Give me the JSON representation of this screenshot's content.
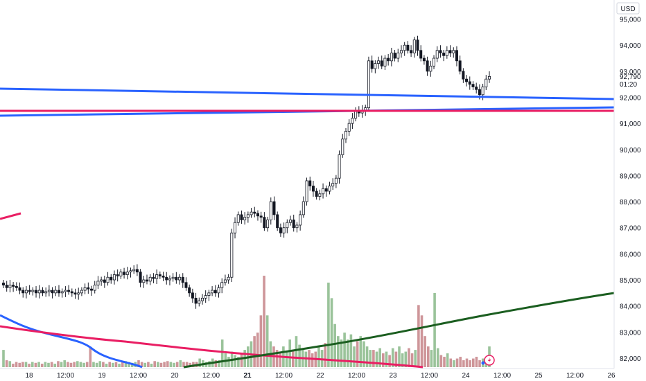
{
  "header": {
    "currency": "USD"
  },
  "price_axis": {
    "ticks": [
      "95,000",
      "94,000",
      "93,000",
      "92,000",
      "91,000",
      "90,000",
      "89,000",
      "88,000",
      "87,000",
      "86,000",
      "85,000",
      "84,000",
      "83,000",
      "82,000"
    ],
    "last_price": "92,790",
    "countdown": "01:20"
  },
  "time_axis": {
    "ticks": [
      "18",
      "12:00",
      "19",
      "12:00",
      "20",
      "12:00",
      "21",
      "12:00",
      "22",
      "12:00",
      "23",
      "12:00",
      "24",
      "12:00",
      "25",
      "12:00",
      "26"
    ]
  },
  "colors": {
    "background": "#ffffff",
    "up": "#26a69a",
    "down": "#ef5350",
    "candle": "#131722",
    "vol_up": "#8fbc8f",
    "vol_down": "#c98a8e",
    "trendline_blue": "#2962ff",
    "trendline_red": "#e91e63",
    "ma_green": "#1b5e20"
  },
  "chart_data": {
    "type": "candlestick",
    "y_unit": "USD",
    "ylim": [
      81600,
      95600
    ],
    "x_start": "18 Nov 06:00",
    "candle_interval_hours": 1,
    "candles_close": [
      84800,
      84700,
      84800,
      84750,
      84700,
      84600,
      84500,
      84600,
      84550,
      84600,
      84500,
      84600,
      84500,
      84550,
      84600,
      84500,
      84600,
      84500,
      84550,
      84600,
      84550,
      84500,
      84450,
      84500,
      84600,
      84700,
      84650,
      84600,
      84800,
      84950,
      85000,
      84900,
      85100,
      85000,
      85200,
      85150,
      85300,
      85200,
      85300,
      85350,
      85400,
      85300,
      84900,
      85000,
      84950,
      85100,
      85050,
      85200,
      85150,
      85100,
      85000,
      85050,
      85100,
      85000,
      85100,
      84900,
      84700,
      84500,
      84300,
      84100,
      84200,
      84300,
      84400,
      84500,
      84600,
      84500,
      84700,
      84900,
      85000,
      85100,
      86800,
      87200,
      87500,
      87300,
      87400,
      87500,
      87600,
      87550,
      87450,
      87400,
      87000,
      87300,
      88000,
      87500,
      87000,
      86800,
      87000,
      87200,
      87300,
      87000,
      87100,
      87500,
      88000,
      88800,
      88600,
      88400,
      88200,
      88300,
      88500,
      88400,
      88600,
      88700,
      88900,
      89800,
      90400,
      90700,
      91000,
      91200,
      91500,
      91400,
      91500,
      91600,
      93400,
      93100,
      93300,
      93400,
      93200,
      93500,
      93400,
      93700,
      93500,
      93700,
      93800,
      94000,
      93800,
      93700,
      94200,
      93800,
      93500,
      93400,
      93000,
      93200,
      93500,
      93800,
      93700,
      93600,
      93800,
      93700,
      93800,
      93400,
      93000,
      92700,
      92600,
      92500,
      92400,
      92300,
      92100,
      92400,
      92700,
      92800
    ],
    "volume_profile": [
      1.0,
      0.4,
      0.35,
      0.2,
      0.3,
      0.25,
      0.3,
      0.3,
      0.2,
      0.3,
      0.25,
      0.3,
      0.2,
      0.3,
      0.25,
      0.3,
      0.2,
      0.35,
      0.3,
      0.4,
      0.3,
      0.25,
      0.3,
      0.35,
      0.3,
      0.25,
      0.3,
      1.15,
      0.3,
      0.25,
      0.35,
      0.3,
      0.2,
      0.3,
      0.25,
      0.3,
      0.2,
      0.3,
      0.35,
      0.3,
      0.25,
      0.3,
      0.4,
      0.3,
      0.25,
      0.3,
      0.2,
      0.35,
      0.3,
      0.25,
      0.3,
      0.35,
      0.3,
      0.25,
      0.3,
      0.4,
      0.3,
      0.3,
      0.25,
      0.3,
      0.3,
      0.5,
      0.4,
      0.3,
      0.35,
      0.5,
      0.4,
      0.4,
      1.6,
      0.8,
      0.6,
      0.9,
      0.7,
      0.6,
      0.8,
      1.0,
      1.2,
      1.5,
      1.8,
      2.0,
      3.0,
      5.3,
      3.0,
      1.5,
      1.2,
      1.0,
      0.8,
      1.2,
      0.9,
      1.6,
      1.0,
      1.8,
      1.3,
      1.0,
      0.9,
      1.0,
      0.8,
      0.9,
      1.2,
      1.0,
      1.4,
      4.9,
      4.0,
      2.5,
      1.8,
      1.6,
      2.0,
      1.6,
      1.9,
      1.2,
      1.5,
      1.8,
      1.5,
      1.2,
      1.0,
      1.0,
      0.9,
      1.1,
      0.8,
      0.9,
      0.7,
      1.1,
      0.9,
      1.2,
      0.8,
      0.9,
      1.1,
      0.8,
      1.0,
      3.6,
      3.0,
      1.8,
      1.2,
      1.0,
      4.3,
      1.1,
      0.7,
      0.6,
      0.8,
      0.5,
      0.4,
      0.5,
      0.6,
      0.4,
      0.5,
      0.4,
      0.5,
      0.6,
      0.4,
      0.5,
      0.4,
      1.2
    ]
  }
}
